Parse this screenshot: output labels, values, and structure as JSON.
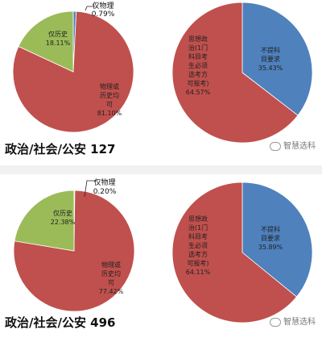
{
  "chart_data": [
    {
      "type": "pie",
      "id": "p1a",
      "slices": [
        {
          "label": "仅物理",
          "value": 0.79,
          "value_text": "0.79%",
          "color": "#4f81bd"
        },
        {
          "label": "物理或历史均可",
          "value": 81.1,
          "value_text": "81.10%",
          "color": "#c0504d"
        },
        {
          "label": "仅历史",
          "value": 18.11,
          "value_text": "18.11%",
          "color": "#9bbb59"
        }
      ]
    },
    {
      "type": "pie",
      "id": "p1b",
      "slices": [
        {
          "label": "不提科目要求",
          "value": 35.43,
          "value_text": "35.43%",
          "color": "#4f81bd"
        },
        {
          "label": "思想政治(1门科目考生必须选考方可报考)",
          "value": 64.57,
          "value_text": "64.57%",
          "color": "#c0504d"
        }
      ]
    },
    {
      "type": "pie",
      "id": "p2a",
      "slices": [
        {
          "label": "仅物理",
          "value": 0.2,
          "value_text": "0.20%",
          "color": "#4f81bd"
        },
        {
          "label": "物理或历史均可",
          "value": 77.42,
          "value_text": "77.42%",
          "color": "#c0504d"
        },
        {
          "label": "仅历史",
          "value": 22.38,
          "value_text": "22.38%",
          "color": "#9bbb59"
        }
      ]
    },
    {
      "type": "pie",
      "id": "p2b",
      "slices": [
        {
          "label": "不提科目要求",
          "value": 35.89,
          "value_text": "35.89%",
          "color": "#4f81bd"
        },
        {
          "label": "思想政治(1门科目考生必须选考方可报考)",
          "value": 64.11,
          "value_text": "64.11%",
          "color": "#c0504d"
        }
      ]
    }
  ],
  "labels": {
    "p1a_s0": [
      "仅物理",
      "0.79%"
    ],
    "p1a_s1": [
      "物理或",
      "历史均",
      "可",
      "81.10%"
    ],
    "p1a_s2": [
      "仅历史",
      "18.11%"
    ],
    "p1b_s0": [
      "不提科",
      "目要求",
      "35.43%"
    ],
    "p1b_s1": [
      "思想政",
      "治(1门",
      "科目考",
      "生必须",
      "选考方",
      "可报考)",
      "64.57%"
    ],
    "p2a_s0": [
      "仅物理",
      "0.20%"
    ],
    "p2a_s1": [
      "物理或",
      "历史均",
      "可",
      "77.42%"
    ],
    "p2a_s2": [
      "仅历史",
      "22.38%"
    ],
    "p2b_s0": [
      "不提科",
      "目要求",
      "35.89%"
    ],
    "p2b_s1": [
      "思想政",
      "治(1门",
      "科目考",
      "生必须",
      "选考方",
      "可报考)",
      "64.11%"
    ]
  },
  "captions": {
    "panel1": "政治/社会/公安 127",
    "panel2": "政治/社会/公安 496"
  },
  "watermark": "智慧选科",
  "colors": {
    "blue": "#4f81bd",
    "red": "#c0504d",
    "green": "#9bbb59",
    "separator": "#f1f1f1"
  }
}
